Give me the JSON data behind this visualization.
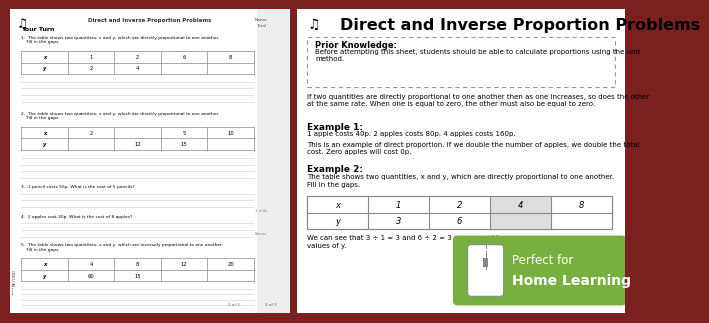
{
  "title": "Direct and Inverse Proportion Problems",
  "border_color": "#7a2020",
  "prior_knowledge_label": "Prior Knowledge:",
  "prior_knowledge_text": "Before attempting this sheet, students should be able to calculate proportions using the unit\nmethod.",
  "definition_text": "If two quantities are directly proportional to one another then as one increases, so does the other\nat the same rate. When one is equal to zero, the other must also be equal to zero.",
  "example1_label": "Example 1:",
  "example1_text": "1 apple costs 40p. 2 apples costs 80p. 4 apples costs 160p.",
  "example1_desc": "This is an example of direct proportion. If we double the number of apples, we double the total\ncost. Zero apples will cost 0p.",
  "example2_label": "Example 2:",
  "example2_text": "The table shows two quantities, x and y, which are directly proportional to one another.",
  "fill_in": "Fill in the gaps.",
  "table_x": [
    "x",
    "1",
    "2",
    "4",
    "8"
  ],
  "table_y": [
    "y",
    "3",
    "6",
    "",
    ""
  ],
  "conclusion_text": "We can see that 3 ÷ 1 = 3 and 6 ÷ 2 = 3 so we need to m",
  "conclusion_text2": "values of y.",
  "watermark_text1": "Perfect for",
  "watermark_text2": "Home Learning",
  "watermark_bg": "#78b040",
  "dashed_border_color": "#999999",
  "left_q1_text": "1.  The table shows two quantities, x and y, which are directly proportional to one another.\n    Fill in the gaps.",
  "left_q2_text": "2.  The table shows two quantities, x and y, which are directly proportional to one another.\n    Fill in the gaps.",
  "left_q3_text": "3.  1 pencil costs 55p. What is the cost of 5 pencils?",
  "left_q4_text": "4.  2 apples cost 30p. What is the cost of 8 apples?",
  "left_q5_text": "5.  The table shows two quantities, x and y, which are inversely proportional to one another.\n    Fill in the gaps.",
  "left_t1_x": [
    "x",
    "1",
    "2",
    "6",
    "8"
  ],
  "left_t1_y": [
    "y",
    "2",
    "4",
    "",
    ""
  ],
  "left_t2_x": [
    "x",
    "2",
    "",
    "5",
    "10"
  ],
  "left_t2_y": [
    "y",
    "",
    "12",
    "15",
    ""
  ],
  "left_t3_x": [
    "x",
    "4",
    "8",
    "12",
    "20"
  ],
  "left_t3_y": [
    "y",
    "60",
    "15",
    "",
    ""
  ]
}
